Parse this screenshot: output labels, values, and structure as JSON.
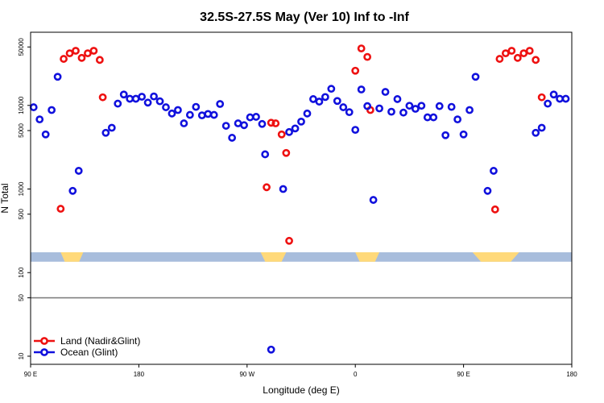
{
  "chart_data": {
    "type": "scatter",
    "title": "32.5S-27.5S May (Ver 10)   Inf to -Inf",
    "xlabel": "Longitude (deg E)",
    "ylabel": "N Total",
    "x_scale": "linear",
    "y_scale": "log",
    "xlim": [
      90,
      450
    ],
    "ylim": [
      8,
      75000
    ],
    "x_ticks": [
      {
        "value": 90,
        "label": "90 E"
      },
      {
        "value": 162,
        "label": "180"
      },
      {
        "value": 234,
        "label": "90 W"
      },
      {
        "value": 306,
        "label": "0"
      },
      {
        "value": 378,
        "label": "90 E"
      },
      {
        "value": 450,
        "label": "180"
      }
    ],
    "y_ticks": [
      {
        "value": 10,
        "label": "10"
      },
      {
        "value": 50,
        "label": "50"
      },
      {
        "value": 100,
        "label": "100"
      },
      {
        "value": 500,
        "label": "500"
      },
      {
        "value": 1000,
        "label": "1000"
      },
      {
        "value": 5000,
        "label": "5000"
      },
      {
        "value": 10000,
        "label": "10000"
      },
      {
        "value": 50000,
        "label": "50000"
      }
    ],
    "reference_line": {
      "y": 50
    },
    "land_mask_band": {
      "y_range": [
        135,
        175
      ],
      "ocean_color": "#a8bddc",
      "land_color": "#ffd97a",
      "land_segments": [
        [
          110,
          125
        ],
        [
          243,
          260
        ],
        [
          306,
          322
        ],
        [
          384,
          415
        ]
      ]
    },
    "series": [
      {
        "name": "Land (Nadir&Glint)",
        "color": "#ee1111",
        "points": [
          [
            110,
            580
          ],
          [
            112,
            36000
          ],
          [
            116,
            42000
          ],
          [
            120,
            45000
          ],
          [
            124,
            37000
          ],
          [
            128,
            42000
          ],
          [
            132,
            45000
          ],
          [
            136,
            35000
          ],
          [
            138,
            12500
          ],
          [
            247,
            1050
          ],
          [
            250,
            6200
          ],
          [
            253,
            6100
          ],
          [
            257,
            4500
          ],
          [
            260,
            2700
          ],
          [
            262,
            240
          ],
          [
            306,
            26000
          ],
          [
            310,
            48000
          ],
          [
            314,
            38000
          ],
          [
            316,
            8800
          ],
          [
            399,
            570
          ],
          [
            402,
            36000
          ],
          [
            406,
            42000
          ],
          [
            410,
            45000
          ],
          [
            414,
            37000
          ],
          [
            418,
            42000
          ],
          [
            422,
            45000
          ],
          [
            426,
            35000
          ],
          [
            430,
            12500
          ]
        ]
      },
      {
        "name": "Ocean (Glint)",
        "color": "#1111dd",
        "points": [
          [
            92,
            9500
          ],
          [
            96,
            6800
          ],
          [
            100,
            4500
          ],
          [
            104,
            8800
          ],
          [
            108,
            22000
          ],
          [
            118,
            950
          ],
          [
            122,
            1650
          ],
          [
            140,
            4700
          ],
          [
            144,
            5400
          ],
          [
            148,
            10500
          ],
          [
            152,
            13500
          ],
          [
            156,
            12000
          ],
          [
            160,
            12000
          ],
          [
            164,
            12700
          ],
          [
            168,
            10800
          ],
          [
            172,
            12800
          ],
          [
            176,
            11200
          ],
          [
            180,
            9500
          ],
          [
            184,
            8000
          ],
          [
            188,
            8800
          ],
          [
            192,
            6100
          ],
          [
            196,
            7700
          ],
          [
            200,
            9600
          ],
          [
            204,
            7600
          ],
          [
            208,
            7900
          ],
          [
            212,
            7700
          ],
          [
            216,
            10400
          ],
          [
            220,
            5700
          ],
          [
            224,
            4100
          ],
          [
            228,
            6100
          ],
          [
            232,
            5800
          ],
          [
            236,
            7200
          ],
          [
            240,
            7300
          ],
          [
            244,
            6000
          ],
          [
            246,
            2600
          ],
          [
            250,
            12
          ],
          [
            258,
            1000
          ],
          [
            262,
            4800
          ],
          [
            266,
            5300
          ],
          [
            270,
            6400
          ],
          [
            274,
            8000
          ],
          [
            278,
            11900
          ],
          [
            282,
            11100
          ],
          [
            286,
            12600
          ],
          [
            290,
            15800
          ],
          [
            294,
            11300
          ],
          [
            298,
            9500
          ],
          [
            302,
            8300
          ],
          [
            306,
            5100
          ],
          [
            310,
            15500
          ],
          [
            314,
            9800
          ],
          [
            318,
            740
          ],
          [
            322,
            9200
          ],
          [
            326,
            14500
          ],
          [
            330,
            8400
          ],
          [
            334,
            11900
          ],
          [
            338,
            8200
          ],
          [
            342,
            9900
          ],
          [
            346,
            9100
          ],
          [
            350,
            9900
          ],
          [
            354,
            7200
          ],
          [
            358,
            7200
          ],
          [
            362,
            9800
          ],
          [
            366,
            4400
          ],
          [
            370,
            9600
          ],
          [
            374,
            6800
          ],
          [
            378,
            4500
          ],
          [
            382,
            8800
          ],
          [
            386,
            22000
          ],
          [
            394,
            950
          ],
          [
            398,
            1650
          ],
          [
            426,
            4700
          ],
          [
            430,
            5400
          ],
          [
            434,
            10500
          ],
          [
            438,
            13500
          ],
          [
            442,
            12000
          ],
          [
            446,
            12000
          ]
        ]
      }
    ],
    "legend": {
      "position": "bottom-left",
      "entries": [
        "Land (Nadir&Glint)",
        "Ocean (Glint)"
      ]
    }
  }
}
